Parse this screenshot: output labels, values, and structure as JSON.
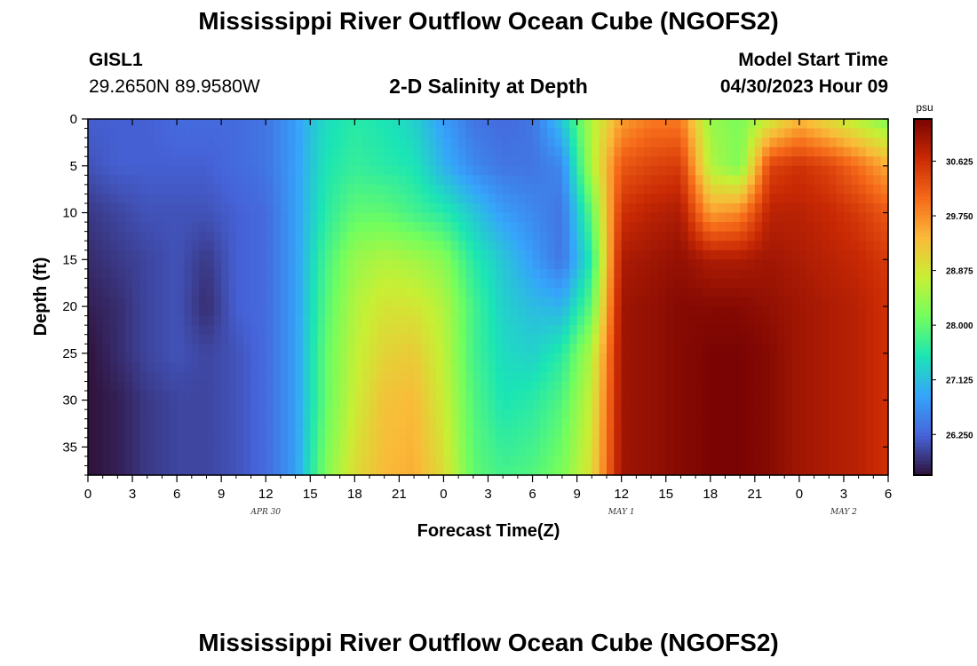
{
  "header": {
    "title": "Mississippi River Outflow Ocean Cube (NGOFS2)",
    "station": "GISL1",
    "coords": "29.2650N  89.9580W",
    "plot_title": "2-D Salinity at Depth",
    "model_start_label": "Model Start Time",
    "model_start_value": "04/30/2023 Hour 09"
  },
  "footer": {
    "title": "Mississippi River Outflow Ocean Cube (NGOFS2)"
  },
  "chart_data": {
    "type": "heatmap",
    "title": "2-D Salinity at Depth",
    "xlabel": "Forecast Time(Z)",
    "ylabel": "Depth (ft)",
    "x_tick_labels": [
      "0",
      "3",
      "6",
      "9",
      "12",
      "15",
      "18",
      "21",
      "0",
      "3",
      "6",
      "9",
      "12",
      "15",
      "18",
      "21",
      "0",
      "3",
      "6"
    ],
    "x_range_hours": [
      0,
      54
    ],
    "date_labels": [
      {
        "hour": 12,
        "label": "APR 30"
      },
      {
        "hour": 36,
        "label": "MAY 1"
      },
      {
        "hour": 51,
        "label": "MAY 2"
      }
    ],
    "y_ticks": [
      0,
      5,
      10,
      15,
      20,
      25,
      30,
      35
    ],
    "ylim": [
      0,
      38
    ],
    "y_inverted": true,
    "colorbar": {
      "unit": "psu",
      "ticks": [
        30.625,
        29.75,
        28.875,
        28.0,
        27.125,
        26.25
      ],
      "tick_labels": [
        "30.625",
        "29.750",
        "28.875",
        "28.000",
        "27.125",
        "26.250"
      ],
      "range": [
        25.6,
        31.3
      ],
      "colormap": "turbo"
    },
    "series": [
      {
        "hour": 0,
        "depth_ft": [
          0,
          5,
          10,
          15,
          20,
          25,
          30,
          38
        ],
        "salinity_psu": [
          26.2,
          26.1,
          25.9,
          25.8,
          25.7,
          25.6,
          25.6,
          25.6
        ]
      },
      {
        "hour": 2,
        "depth_ft": [
          0,
          5,
          10,
          15,
          20,
          25,
          30,
          38
        ],
        "salinity_psu": [
          26.2,
          26.2,
          26.0,
          25.9,
          25.8,
          25.8,
          25.7,
          25.7
        ]
      },
      {
        "hour": 4,
        "depth_ft": [
          0,
          5,
          10,
          15,
          20,
          25,
          30,
          38
        ],
        "salinity_psu": [
          26.2,
          26.2,
          26.1,
          26.0,
          26.0,
          26.0,
          25.9,
          25.9
        ]
      },
      {
        "hour": 6,
        "depth_ft": [
          0,
          5,
          10,
          15,
          20,
          25,
          30,
          38
        ],
        "salinity_psu": [
          26.3,
          26.2,
          26.1,
          26.1,
          26.1,
          26.1,
          26.0,
          26.0
        ]
      },
      {
        "hour": 8,
        "depth_ft": [
          0,
          5,
          10,
          15,
          20,
          25,
          30,
          38
        ],
        "salinity_psu": [
          26.3,
          26.2,
          26.1,
          25.9,
          25.8,
          26.0,
          26.0,
          26.0
        ]
      },
      {
        "hour": 10,
        "depth_ft": [
          0,
          5,
          10,
          15,
          20,
          25,
          30,
          38
        ],
        "salinity_psu": [
          26.3,
          26.3,
          26.2,
          26.2,
          26.2,
          26.1,
          26.1,
          26.1
        ]
      },
      {
        "hour": 12,
        "depth_ft": [
          0,
          5,
          10,
          15,
          20,
          25,
          30,
          38
        ],
        "salinity_psu": [
          26.4,
          26.4,
          26.3,
          26.3,
          26.3,
          26.3,
          26.3,
          26.3
        ]
      },
      {
        "hour": 14,
        "depth_ft": [
          0,
          5,
          10,
          15,
          20,
          25,
          30,
          38
        ],
        "salinity_psu": [
          26.8,
          26.8,
          26.8,
          26.8,
          26.8,
          26.8,
          26.8,
          26.8
        ]
      },
      {
        "hour": 16,
        "depth_ft": [
          0,
          5,
          10,
          15,
          20,
          25,
          30,
          38
        ],
        "salinity_psu": [
          27.4,
          27.5,
          27.6,
          27.8,
          27.9,
          28.0,
          28.0,
          28.2
        ]
      },
      {
        "hour": 18,
        "depth_ft": [
          0,
          5,
          10,
          15,
          20,
          25,
          30,
          38
        ],
        "salinity_psu": [
          27.6,
          27.7,
          28.0,
          28.4,
          28.6,
          28.7,
          28.8,
          29.0
        ]
      },
      {
        "hour": 20,
        "depth_ft": [
          0,
          5,
          10,
          15,
          20,
          25,
          30,
          38
        ],
        "salinity_psu": [
          27.5,
          27.6,
          28.0,
          28.6,
          28.9,
          29.1,
          29.3,
          29.4
        ]
      },
      {
        "hour": 22,
        "depth_ft": [
          0,
          5,
          10,
          15,
          20,
          25,
          30,
          38
        ],
        "salinity_psu": [
          27.3,
          27.5,
          27.8,
          28.5,
          28.9,
          29.2,
          29.4,
          29.5
        ]
      },
      {
        "hour": 24,
        "depth_ft": [
          0,
          5,
          10,
          15,
          20,
          25,
          30,
          38
        ],
        "salinity_psu": [
          26.8,
          27.0,
          27.6,
          28.3,
          28.6,
          28.7,
          28.8,
          29.0
        ]
      },
      {
        "hour": 26,
        "depth_ft": [
          0,
          5,
          10,
          15,
          20,
          25,
          30,
          38
        ],
        "salinity_psu": [
          26.4,
          26.6,
          27.2,
          27.6,
          27.8,
          27.8,
          27.9,
          28.0
        ]
      },
      {
        "hour": 28,
        "depth_ft": [
          0,
          5,
          10,
          15,
          20,
          25,
          30,
          38
        ],
        "salinity_psu": [
          26.3,
          26.4,
          26.8,
          27.2,
          27.3,
          27.4,
          27.5,
          27.8
        ]
      },
      {
        "hour": 30,
        "depth_ft": [
          0,
          5,
          10,
          15,
          20,
          25,
          30,
          38
        ],
        "salinity_psu": [
          26.4,
          26.4,
          26.6,
          26.8,
          27.1,
          27.3,
          27.6,
          27.9
        ]
      },
      {
        "hour": 32,
        "depth_ft": [
          0,
          5,
          10,
          15,
          20,
          25,
          30,
          38
        ],
        "salinity_psu": [
          27.2,
          26.6,
          26.4,
          26.4,
          27.0,
          27.6,
          27.9,
          28.2
        ]
      },
      {
        "hour": 34,
        "depth_ft": [
          0,
          5,
          10,
          15,
          20,
          25,
          30,
          38
        ],
        "salinity_psu": [
          28.6,
          28.6,
          28.0,
          27.6,
          28.0,
          28.6,
          28.8,
          29.0
        ]
      },
      {
        "hour": 36,
        "depth_ft": [
          0,
          5,
          10,
          15,
          20,
          25,
          30,
          38
        ],
        "salinity_psu": [
          29.6,
          30.2,
          30.6,
          30.9,
          31.0,
          31.0,
          31.0,
          31.0
        ]
      },
      {
        "hour": 38,
        "depth_ft": [
          0,
          5,
          10,
          15,
          20,
          25,
          30,
          38
        ],
        "salinity_psu": [
          29.9,
          30.4,
          30.8,
          31.0,
          31.1,
          31.1,
          31.1,
          31.1
        ]
      },
      {
        "hour": 40,
        "depth_ft": [
          0,
          5,
          10,
          15,
          20,
          25,
          30,
          38
        ],
        "salinity_psu": [
          29.9,
          30.5,
          30.9,
          31.1,
          31.2,
          31.2,
          31.2,
          31.2
        ]
      },
      {
        "hour": 42,
        "depth_ft": [
          0,
          5,
          10,
          15,
          20,
          25,
          30,
          38
        ],
        "salinity_psu": [
          28.4,
          28.6,
          29.6,
          30.9,
          31.2,
          31.3,
          31.3,
          31.3
        ]
      },
      {
        "hour": 44,
        "depth_ft": [
          0,
          5,
          10,
          15,
          20,
          25,
          30,
          38
        ],
        "salinity_psu": [
          28.2,
          28.2,
          29.8,
          30.9,
          31.2,
          31.3,
          31.3,
          31.3
        ]
      },
      {
        "hour": 46,
        "depth_ft": [
          0,
          5,
          10,
          15,
          20,
          25,
          30,
          38
        ],
        "salinity_psu": [
          28.8,
          30.4,
          30.8,
          31.0,
          31.1,
          31.2,
          31.2,
          31.2
        ]
      },
      {
        "hour": 48,
        "depth_ft": [
          0,
          5,
          10,
          15,
          20,
          25,
          30,
          38
        ],
        "salinity_psu": [
          29.4,
          30.6,
          30.8,
          30.9,
          31.0,
          31.0,
          31.0,
          31.0
        ]
      },
      {
        "hour": 50,
        "depth_ft": [
          0,
          5,
          10,
          15,
          20,
          25,
          30,
          38
        ],
        "salinity_psu": [
          29.0,
          30.4,
          30.7,
          30.8,
          30.9,
          30.9,
          30.9,
          30.9
        ]
      },
      {
        "hour": 52,
        "depth_ft": [
          0,
          5,
          10,
          15,
          20,
          25,
          30,
          38
        ],
        "salinity_psu": [
          28.6,
          30.0,
          30.5,
          30.7,
          30.8,
          30.8,
          30.8,
          30.8
        ]
      },
      {
        "hour": 54,
        "depth_ft": [
          0,
          5,
          10,
          15,
          20,
          25,
          30,
          38
        ],
        "salinity_psu": [
          28.2,
          29.5,
          30.2,
          30.5,
          30.6,
          30.6,
          30.6,
          30.6
        ]
      }
    ]
  }
}
